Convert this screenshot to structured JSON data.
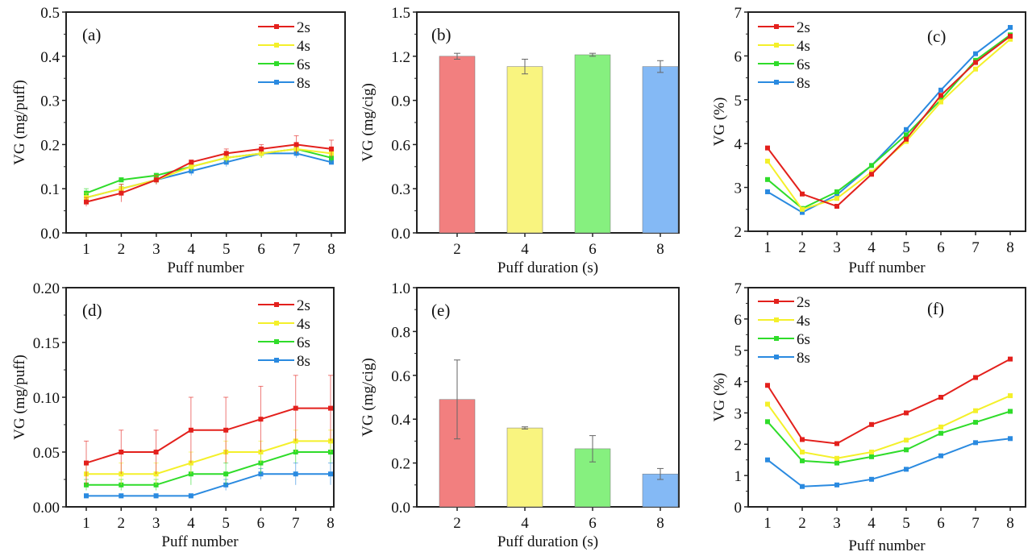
{
  "colors": {
    "2s": "#e3201c",
    "4s": "#f4f02a",
    "6s": "#2fdc2a",
    "8s": "#2a8ae0",
    "bar_2": "#f27f7f",
    "bar_4": "#f9f47f",
    "bar_6": "#86f07f",
    "bar_8": "#84b9f5"
  },
  "chart_data": [
    {
      "panel": "(a)",
      "type": "line",
      "xlabel": "Puff number",
      "ylabel": "VG (mg/puff)",
      "ylim": [
        0,
        0.5
      ],
      "yticks": [
        "0.0",
        "0.1",
        "0.2",
        "0.3",
        "0.4",
        "0.5"
      ],
      "legend": "top-right",
      "x": [
        1,
        2,
        3,
        4,
        5,
        6,
        7,
        8
      ],
      "series": [
        {
          "name": "2s",
          "values": [
            0.07,
            0.09,
            0.12,
            0.16,
            0.18,
            0.19,
            0.2,
            0.19
          ],
          "errors": [
            0.01,
            0.02,
            0.01,
            0.005,
            0.01,
            0.01,
            0.02,
            0.02
          ]
        },
        {
          "name": "4s",
          "values": [
            0.08,
            0.1,
            0.12,
            0.15,
            0.17,
            0.18,
            0.19,
            0.18
          ],
          "errors": [
            0.01,
            0.01,
            0.01,
            0.01,
            0.01,
            0.01,
            0.01,
            0.01
          ]
        },
        {
          "name": "6s",
          "values": [
            0.09,
            0.12,
            0.13,
            0.15,
            0.17,
            0.18,
            0.19,
            0.17
          ],
          "errors": [
            0.01,
            0.005,
            0.005,
            0.01,
            0.01,
            0.01,
            0.01,
            0.01
          ]
        },
        {
          "name": "8s",
          "values": [
            0.08,
            0.1,
            0.12,
            0.14,
            0.16,
            0.18,
            0.18,
            0.16
          ],
          "errors": [
            0.01,
            0.01,
            0.01,
            0.01,
            0.01,
            0.01,
            0.01,
            0.005
          ]
        }
      ]
    },
    {
      "panel": "(b)",
      "type": "bar",
      "xlabel": "Puff duration (s)",
      "ylabel": "VG (mg/cig)",
      "ylim": [
        0,
        1.5
      ],
      "yticks": [
        "0.0",
        "0.3",
        "0.6",
        "0.9",
        "1.2",
        "1.5"
      ],
      "categories": [
        "2",
        "4",
        "6",
        "8"
      ],
      "values": [
        1.2,
        1.13,
        1.21,
        1.13
      ],
      "errors": [
        0.02,
        0.05,
        0.01,
        0.04
      ]
    },
    {
      "panel": "(c)",
      "type": "line",
      "xlabel": "Puff number",
      "ylabel": "VG (%)",
      "ylim": [
        2,
        7
      ],
      "yticks": [
        "2",
        "3",
        "4",
        "5",
        "6",
        "7"
      ],
      "legend": "top-left",
      "x": [
        1,
        2,
        3,
        4,
        5,
        6,
        7,
        8
      ],
      "series": [
        {
          "name": "2s",
          "values": [
            3.9,
            2.85,
            2.57,
            3.3,
            4.1,
            5.1,
            5.85,
            6.45
          ]
        },
        {
          "name": "4s",
          "values": [
            3.6,
            2.5,
            2.75,
            3.35,
            4.05,
            4.95,
            5.7,
            6.38
          ]
        },
        {
          "name": "6s",
          "values": [
            3.18,
            2.52,
            2.9,
            3.5,
            4.2,
            5.0,
            5.9,
            6.48
          ]
        },
        {
          "name": "8s",
          "values": [
            2.9,
            2.43,
            2.83,
            3.5,
            4.32,
            5.22,
            6.05,
            6.65
          ]
        }
      ]
    },
    {
      "panel": "(d)",
      "type": "line",
      "xlabel": "Puff number",
      "ylabel": "VG (mg/puff)",
      "ylim": [
        0,
        0.2
      ],
      "yticks": [
        "0.00",
        "0.05",
        "0.10",
        "0.15",
        "0.20"
      ],
      "legend": "top-right",
      "x": [
        1,
        2,
        3,
        4,
        5,
        6,
        7,
        8
      ],
      "series": [
        {
          "name": "2s",
          "values": [
            0.04,
            0.05,
            0.05,
            0.07,
            0.07,
            0.08,
            0.09,
            0.09
          ],
          "errors": [
            0.02,
            0.02,
            0.02,
            0.03,
            0.03,
            0.03,
            0.03,
            0.03
          ]
        },
        {
          "name": "4s",
          "values": [
            0.03,
            0.03,
            0.03,
            0.04,
            0.05,
            0.05,
            0.06,
            0.06
          ],
          "errors": [
            0.01,
            0.01,
            0.01,
            0.01,
            0.01,
            0.01,
            0.01,
            0.01
          ]
        },
        {
          "name": "6s",
          "values": [
            0.02,
            0.02,
            0.02,
            0.03,
            0.03,
            0.04,
            0.05,
            0.05
          ],
          "errors": [
            0.005,
            0.005,
            0.005,
            0.01,
            0.01,
            0.01,
            0.01,
            0.01
          ]
        },
        {
          "name": "8s",
          "values": [
            0.01,
            0.01,
            0.01,
            0.01,
            0.02,
            0.03,
            0.03,
            0.03
          ],
          "errors": [
            0.002,
            0.002,
            0.002,
            0.002,
            0.005,
            0.005,
            0.01,
            0.01
          ]
        }
      ]
    },
    {
      "panel": "(e)",
      "type": "bar",
      "xlabel": "Puff duration (s)",
      "ylabel": "VG (mg/cig)",
      "ylim": [
        0,
        1.0
      ],
      "yticks": [
        "0.0",
        "0.2",
        "0.4",
        "0.6",
        "0.8",
        "1.0"
      ],
      "categories": [
        "2",
        "4",
        "6",
        "8"
      ],
      "values": [
        0.49,
        0.36,
        0.265,
        0.15
      ],
      "errors": [
        0.18,
        0.005,
        0.06,
        0.025
      ]
    },
    {
      "panel": "(f)",
      "type": "line",
      "xlabel": "Puff number",
      "ylabel": "VG (%)",
      "ylim": [
        0,
        7
      ],
      "yticks": [
        "0",
        "1",
        "2",
        "3",
        "4",
        "5",
        "6",
        "7"
      ],
      "legend": "top-left",
      "x": [
        1,
        2,
        3,
        4,
        5,
        6,
        7,
        8
      ],
      "series": [
        {
          "name": "2s",
          "values": [
            3.88,
            2.15,
            2.02,
            2.63,
            3.0,
            3.5,
            4.13,
            4.72
          ]
        },
        {
          "name": "4s",
          "values": [
            3.28,
            1.75,
            1.55,
            1.75,
            2.13,
            2.55,
            3.07,
            3.55
          ]
        },
        {
          "name": "6s",
          "values": [
            2.72,
            1.47,
            1.4,
            1.6,
            1.82,
            2.35,
            2.7,
            3.05
          ]
        },
        {
          "name": "8s",
          "values": [
            1.5,
            0.65,
            0.7,
            0.88,
            1.2,
            1.63,
            2.05,
            2.18
          ]
        }
      ]
    }
  ]
}
